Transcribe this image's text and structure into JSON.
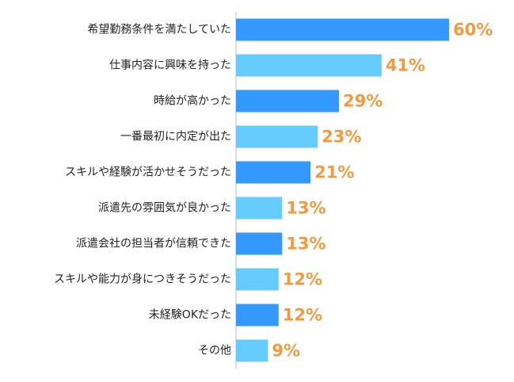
{
  "chart_data": {
    "type": "hbar",
    "categories": [
      "希望勤務条件を満たしていた",
      "仕事内容に興味を持った",
      "時給が高かった",
      "一番最初に内定が出た",
      "スキルや経験が活かせそうだった",
      "派遣先の雰囲気が良かった",
      "派遣会社の担当者が信頼できた",
      "スキルや能力が身につきそうだった",
      "未経験OKだった",
      "その他"
    ],
    "values": [
      60,
      41,
      29,
      23,
      21,
      13,
      13,
      12,
      12,
      9
    ],
    "value_labels": [
      "60%",
      "41%",
      "29%",
      "23%",
      "21%",
      "13%",
      "13%",
      "12%",
      "12%",
      "9%"
    ],
    "colors": [
      "#3399ff",
      "#66ccff",
      "#3399ff",
      "#66ccff",
      "#3399ff",
      "#66ccff",
      "#3399ff",
      "#66ccff",
      "#3399ff",
      "#66ccff"
    ],
    "label_color": "#f59a3c"
  }
}
